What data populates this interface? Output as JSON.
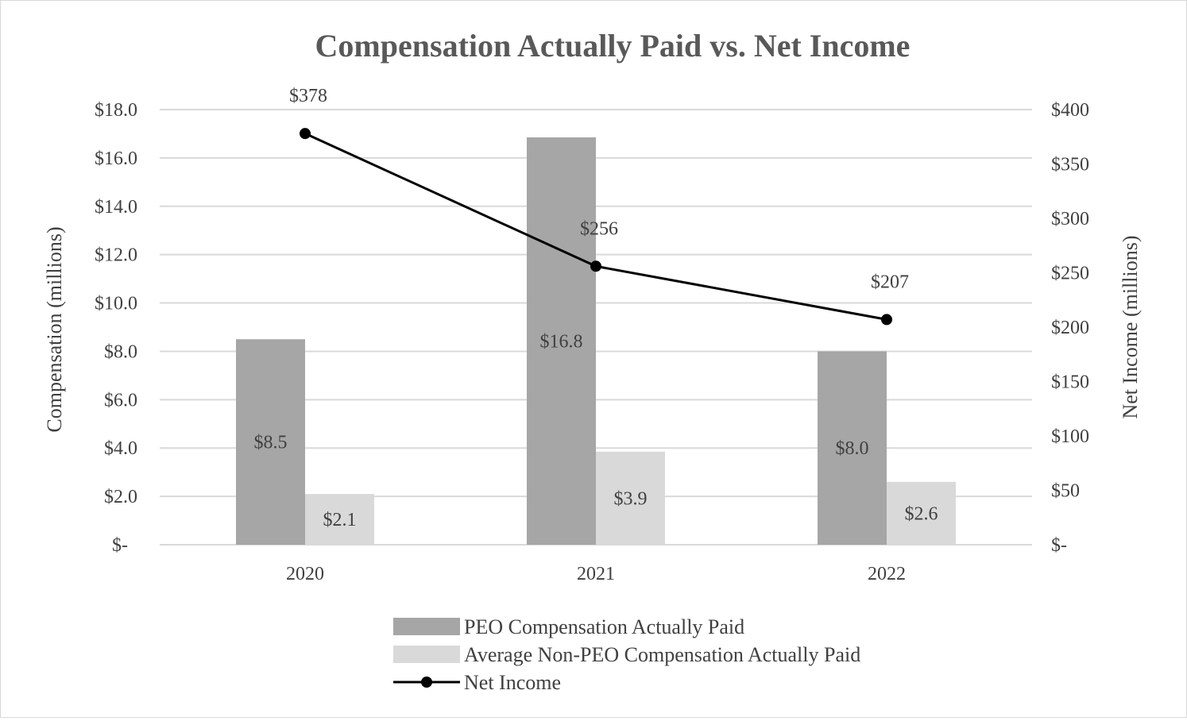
{
  "chart_data": {
    "type": "bar",
    "title": "Compensation Actually Paid vs. Net Income",
    "categories": [
      "2020",
      "2021",
      "2022"
    ],
    "ylabel_left": "Compensation (millions)",
    "ylabel_right": "Net Income (millions)",
    "ylim_left": [
      0,
      18
    ],
    "ylim_right": [
      0,
      400
    ],
    "yticks_left": [
      {
        "value": 0,
        "label": "$-"
      },
      {
        "value": 2,
        "label": "$2.0"
      },
      {
        "value": 4,
        "label": "$4.0"
      },
      {
        "value": 6,
        "label": "$6.0"
      },
      {
        "value": 8,
        "label": "$8.0"
      },
      {
        "value": 10,
        "label": "$10.0"
      },
      {
        "value": 12,
        "label": "$12.0"
      },
      {
        "value": 14,
        "label": "$14.0"
      },
      {
        "value": 16,
        "label": "$16.0"
      },
      {
        "value": 18,
        "label": "$18.0"
      }
    ],
    "yticks_right": [
      {
        "value": 0,
        "label": "$-"
      },
      {
        "value": 50,
        "label": "$50"
      },
      {
        "value": 100,
        "label": "$100"
      },
      {
        "value": 150,
        "label": "$150"
      },
      {
        "value": 200,
        "label": "$200"
      },
      {
        "value": 250,
        "label": "$250"
      },
      {
        "value": 300,
        "label": "$300"
      },
      {
        "value": 350,
        "label": "$350"
      },
      {
        "value": 400,
        "label": "$400"
      }
    ],
    "grid": true,
    "legend_position": "bottom",
    "series": [
      {
        "name": "PEO Compensation Actually Paid",
        "type": "bar",
        "axis": "left",
        "color": "#a6a6a6",
        "values": [
          8.5,
          16.85,
          8.0
        ],
        "labels": [
          "$8.5",
          "$16.8",
          "$8.0"
        ]
      },
      {
        "name": "Average Non-PEO Compensation Actually Paid",
        "type": "bar",
        "axis": "left",
        "color": "#d9d9d9",
        "values": [
          2.1,
          3.85,
          2.6
        ],
        "labels": [
          "$2.1",
          "$3.9",
          "$2.6"
        ]
      },
      {
        "name": "Net Income",
        "type": "line",
        "axis": "right",
        "color": "#000000",
        "values": [
          378,
          256,
          207
        ],
        "labels": [
          "$378",
          "$256",
          "$207"
        ]
      }
    ]
  },
  "colors": {
    "text": "#404040",
    "title": "#595959",
    "grid": "#d9d9d9"
  }
}
